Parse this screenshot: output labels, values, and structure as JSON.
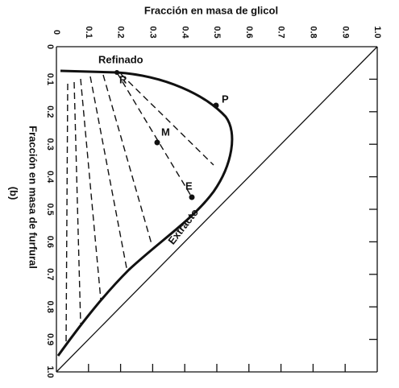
{
  "top_axis": {
    "title": "Fracción en masa de glicol",
    "ticks": [
      "0",
      "0.1",
      "0.2",
      "0.3",
      "0.4",
      "0.5",
      "0.6",
      "0.7",
      "0.8",
      "0.9",
      "1.0"
    ]
  },
  "left_axis": {
    "title": "Fracción en masa de furfural",
    "ticks": [
      "0",
      "0.1",
      "0.2",
      "0.3",
      "0.4",
      "0.5",
      "0.6",
      "0.7",
      "0.8",
      "0.9",
      "1.0"
    ]
  },
  "panel_label": "(b)",
  "curve_labels": {
    "raffinate": "Refinado",
    "extract": "Extracto"
  },
  "points": {
    "p": "P",
    "m": "M",
    "e": "E",
    "r": "R"
  }
}
